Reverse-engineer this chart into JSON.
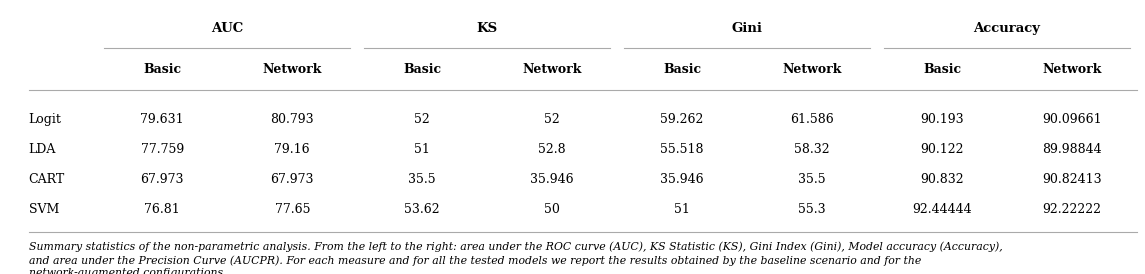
{
  "col_groups": [
    "AUC",
    "KS",
    "Gini",
    "Accuracy"
  ],
  "col_subheaders": [
    "Basic",
    "Network"
  ],
  "rows": [
    {
      "label": "Logit",
      "values": [
        "79.631",
        "80.793",
        "52",
        "52",
        "59.262",
        "61.586",
        "90.193",
        "90.09661"
      ]
    },
    {
      "label": "LDA",
      "values": [
        "77.759",
        "79.16",
        "51",
        "52.8",
        "55.518",
        "58.32",
        "90.122",
        "89.98844"
      ]
    },
    {
      "label": "CART",
      "values": [
        "67.973",
        "67.973",
        "35.5",
        "35.946",
        "35.946",
        "35.5",
        "90.832",
        "90.82413"
      ]
    },
    {
      "label": "SVM",
      "values": [
        "76.81",
        "77.65",
        "53.62",
        "50",
        "51",
        "55.3",
        "92.44444",
        "92.22222"
      ]
    }
  ],
  "caption_line1": "Summary statistics of the non-parametric analysis. From the left to the right: area under the ROC curve (AUC), KS Statistic (KS), Gini Index (Gini), Model accuracy (Accuracy),",
  "caption_line2": "and area under the Precision Curve (AUCPR). For each measure and for all the tested models we report the results obtained by the baseline scenario and for the",
  "caption_line3": "network-augmented configurations.",
  "line_color": "#aaaaaa",
  "bg_color": "#ffffff",
  "text_color": "#000000",
  "group_header_fontsize": 9.5,
  "subheader_fontsize": 9,
  "row_label_fontsize": 9,
  "data_fontsize": 9,
  "caption_fontsize": 7.8
}
